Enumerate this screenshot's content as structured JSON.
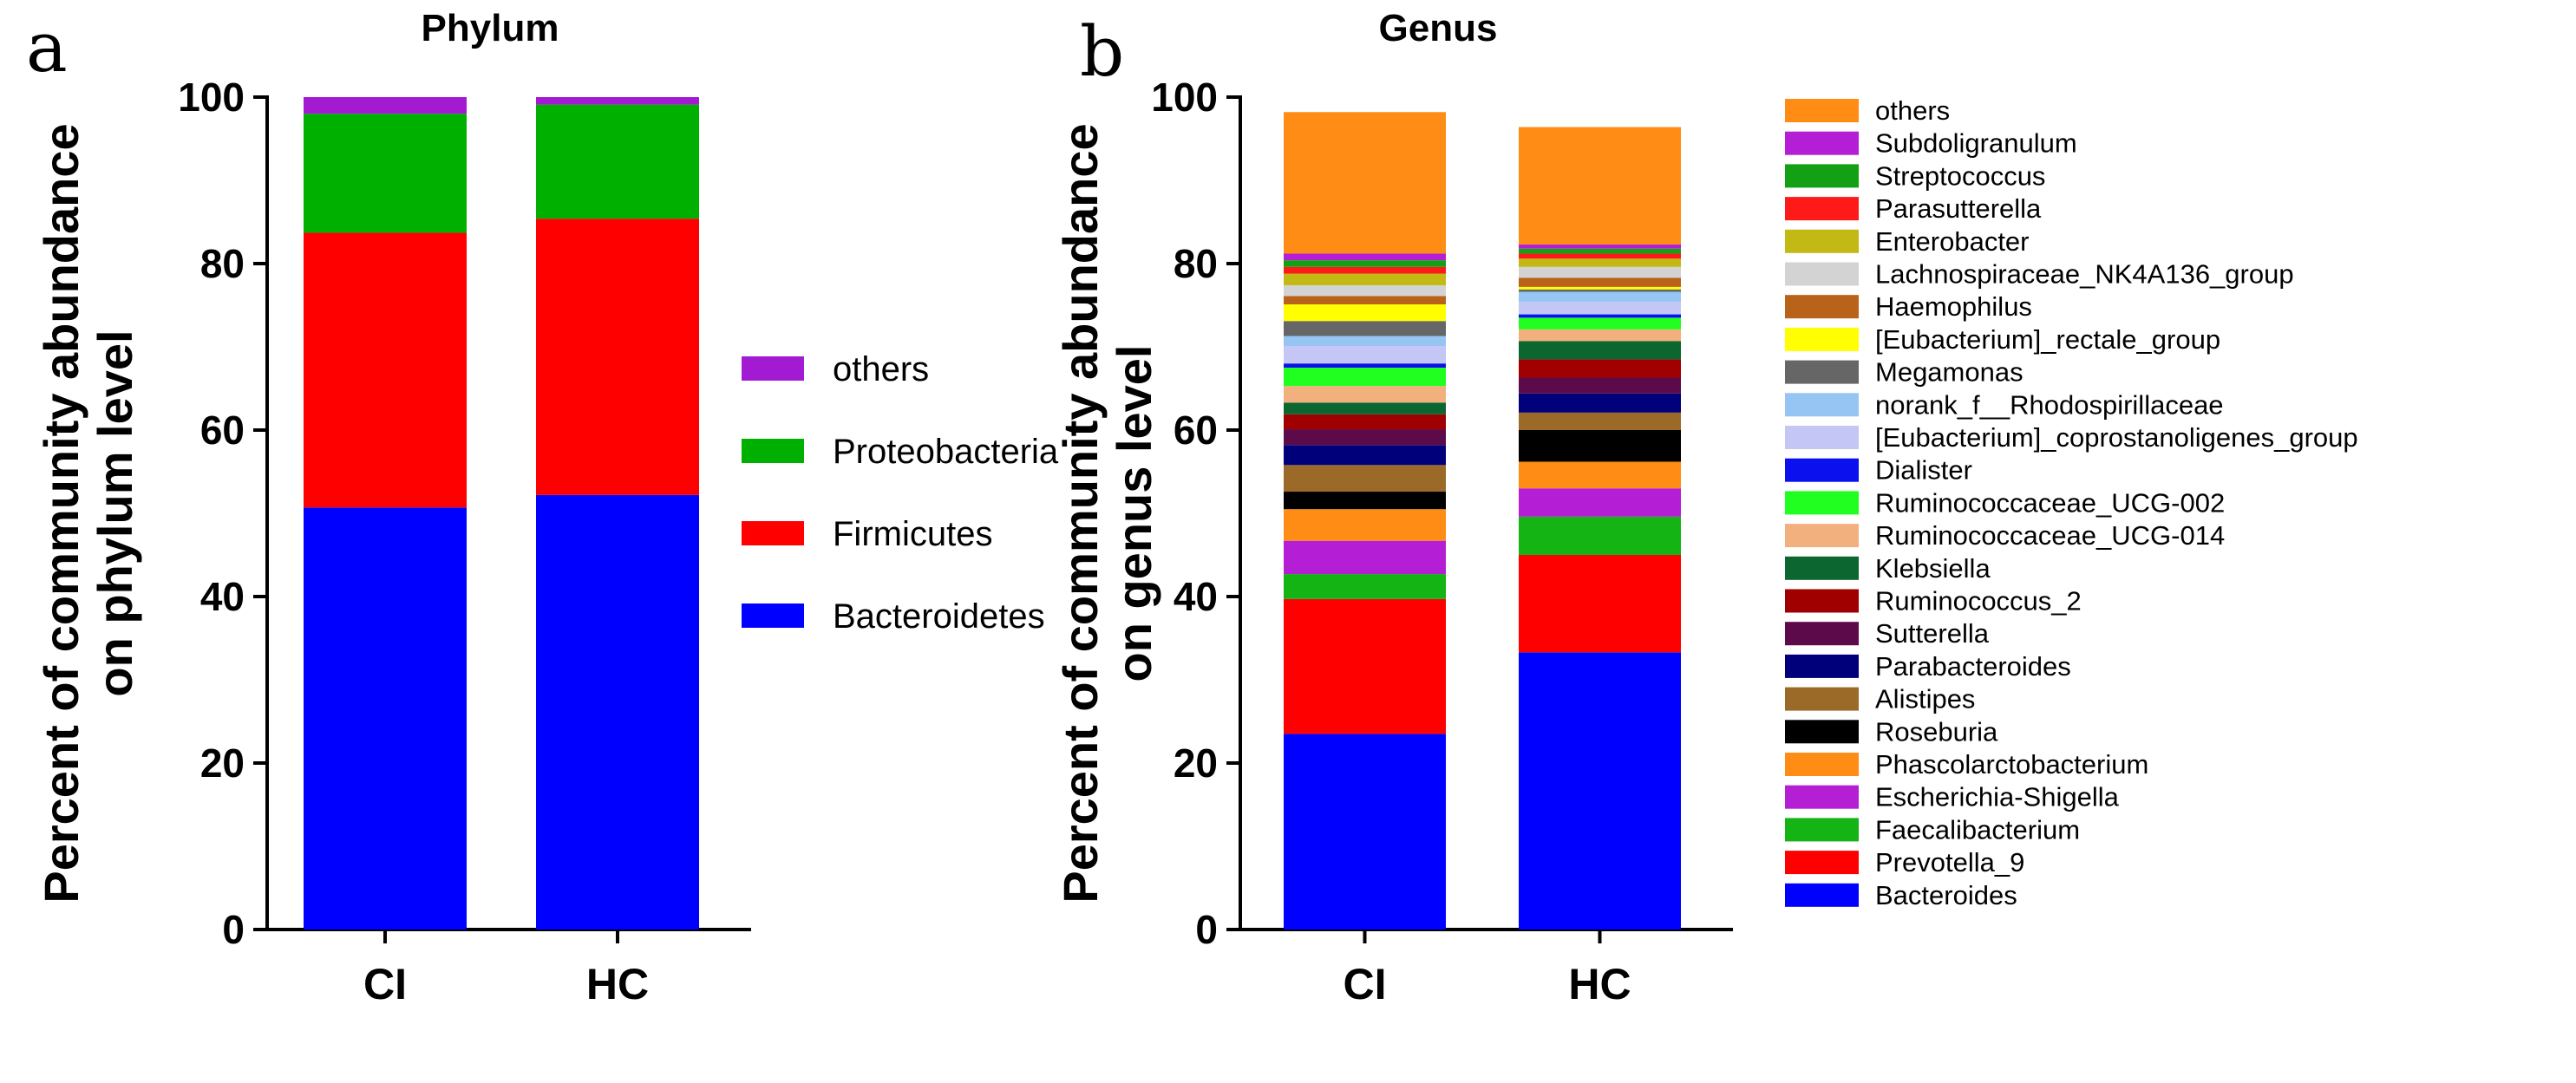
{
  "panels": {
    "a": "a",
    "b": "b"
  },
  "chart_data": [
    {
      "type": "bar",
      "stacked": true,
      "title": "Phylum",
      "ylabel": "Percent of community abundance on phylum level",
      "ylim": [
        0,
        100
      ],
      "yticks": [
        0,
        20,
        40,
        60,
        80,
        100
      ],
      "categories": [
        "CI",
        "HC"
      ],
      "series": [
        {
          "name": "Bacteroidetes",
          "color": "#0000ff",
          "values": [
            50.7,
            52.2
          ]
        },
        {
          "name": "Firmicutes",
          "color": "#ff0000",
          "values": [
            33.0,
            33.2
          ]
        },
        {
          "name": "Proteobacteria",
          "color": "#00b000",
          "values": [
            14.3,
            13.7
          ]
        },
        {
          "name": "others",
          "color": "#a21ad1",
          "values": [
            2.0,
            0.9
          ]
        }
      ],
      "legend_order": [
        "others",
        "Proteobacteria",
        "Firmicutes",
        "Bacteroidetes"
      ],
      "legend_position": "right"
    },
    {
      "type": "bar",
      "stacked": true,
      "title": "Genus",
      "ylabel": "Percent of community abundance on genus level",
      "ylim": [
        0,
        100
      ],
      "yticks": [
        0,
        20,
        40,
        60,
        80,
        100
      ],
      "categories": [
        "CI",
        "HC"
      ],
      "series": [
        {
          "name": "Bacteroides",
          "color": "#0000ff",
          "values": [
            23.5,
            33.3
          ]
        },
        {
          "name": "Prevotella_9",
          "color": "#ff0000",
          "values": [
            16.2,
            11.7
          ]
        },
        {
          "name": "Faecalibacterium",
          "color": "#14b414",
          "values": [
            3.0,
            4.6
          ]
        },
        {
          "name": "Escherichia-Shigella",
          "color": "#b41fd6",
          "values": [
            4.0,
            3.4
          ]
        },
        {
          "name": "Phascolarctobacterium",
          "color": "#ff8c14",
          "values": [
            3.8,
            3.2
          ]
        },
        {
          "name": "Roseburia",
          "color": "#000000",
          "values": [
            2.1,
            3.8
          ]
        },
        {
          "name": "Alistipes",
          "color": "#9b6a29",
          "values": [
            3.2,
            2.1
          ]
        },
        {
          "name": "Parabacteroides",
          "color": "#00007a",
          "values": [
            2.4,
            2.3
          ]
        },
        {
          "name": "Sutterella",
          "color": "#5c0a4a",
          "values": [
            1.9,
            1.9
          ]
        },
        {
          "name": "Ruminococcus_2",
          "color": "#a00000",
          "values": [
            1.8,
            2.2
          ]
        },
        {
          "name": "Klebsiella",
          "color": "#0b6630",
          "values": [
            1.4,
            2.2
          ]
        },
        {
          "name": "Ruminococcaceae_UCG-014",
          "color": "#f2b07e",
          "values": [
            2.0,
            1.4
          ]
        },
        {
          "name": "Ruminococcaceae_UCG-002",
          "color": "#20ff20",
          "values": [
            2.2,
            1.4
          ]
        },
        {
          "name": "Dialister",
          "color": "#0a10ee",
          "values": [
            0.5,
            0.4
          ]
        },
        {
          "name": "[Eubacterium]_coprostanoligenes_group",
          "color": "#c4c6f6",
          "values": [
            2.1,
            1.5
          ]
        },
        {
          "name": "norank_f__Rhodospirillaceae",
          "color": "#97c5f3",
          "values": [
            1.2,
            1.2
          ]
        },
        {
          "name": "Megamonas",
          "color": "#666666",
          "values": [
            1.8,
            0.3
          ]
        },
        {
          "name": "[Eubacterium]_rectale_group",
          "color": "#ffff00",
          "values": [
            2.0,
            0.3
          ]
        },
        {
          "name": "Haemophilus",
          "color": "#b8621a",
          "values": [
            1.0,
            1.1
          ]
        },
        {
          "name": "Lachnospiraceae_NK4A136_group",
          "color": "#d3d3d3",
          "values": [
            1.3,
            1.3
          ]
        },
        {
          "name": "Enterobacter",
          "color": "#c3b914",
          "values": [
            1.4,
            1.0
          ]
        },
        {
          "name": "Parasutterella",
          "color": "#ff1a1a",
          "values": [
            0.8,
            0.6
          ]
        },
        {
          "name": "Streptococcus",
          "color": "#14a014",
          "values": [
            0.8,
            0.6
          ]
        },
        {
          "name": "Subdoligranulum",
          "color": "#b41fd6",
          "values": [
            0.8,
            0.5
          ]
        },
        {
          "name": "others",
          "color": "#ff8c14",
          "values": [
            17.0,
            14.1
          ]
        }
      ],
      "legend_position": "right"
    }
  ]
}
